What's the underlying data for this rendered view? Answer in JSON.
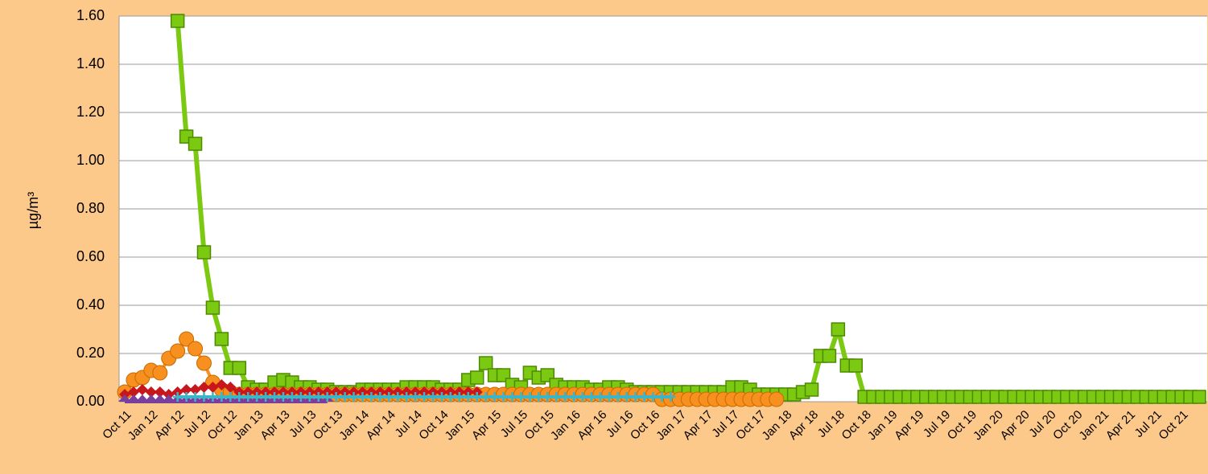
{
  "chart_data": {
    "type": "line",
    "y_label": "µg/m³",
    "categories": [
      "Oct 11",
      null,
      null,
      "Jan 12",
      null,
      null,
      "Apr 12",
      null,
      null,
      "Jul 12",
      null,
      null,
      "Oct 12",
      null,
      null,
      "Jan 13",
      null,
      null,
      "Apr 13",
      null,
      null,
      "Jul 13",
      null,
      null,
      "Oct 13",
      null,
      null,
      "Jan 14",
      null,
      null,
      "Apr 14",
      null,
      null,
      "Jul 14",
      null,
      null,
      "Oct 14",
      null,
      null,
      "Jan 15",
      null,
      null,
      "Apr 15",
      null,
      null,
      "Jul 15",
      null,
      null,
      "Oct 15",
      null,
      null,
      "Jan 16",
      null,
      null,
      "Apr 16",
      null,
      null,
      "Jul 16",
      null,
      null,
      "Oct 16",
      null,
      null,
      "Jan 17",
      null,
      null,
      "Apr 17",
      null,
      null,
      "Jul 17",
      null,
      null,
      "Oct 17",
      null,
      null,
      "Jan 18",
      null,
      null,
      "Apr 18",
      null,
      null,
      "Jul 18",
      null,
      null,
      "Oct 18",
      null,
      null,
      "Jan 19",
      null,
      null,
      "Apr 19",
      null,
      null,
      "Jul 19",
      null,
      null,
      "Oct 19",
      null,
      null,
      "Jan 20",
      null,
      null,
      "Apr 20",
      null,
      null,
      "Jul 20",
      null,
      null,
      "Oct 20",
      null,
      null,
      "Jan 21",
      null,
      null,
      "Apr 21",
      null,
      null,
      "Jul 21",
      null,
      null,
      "Oct 21",
      null,
      null
    ],
    "ylim": [
      0,
      1.6
    ],
    "yticks": [
      {
        "value": 0,
        "label": "0.00"
      },
      {
        "value": 0.2,
        "label": "0.20"
      },
      {
        "value": 0.4,
        "label": "0.40"
      },
      {
        "value": 0.6,
        "label": "0.60"
      },
      {
        "value": 0.8,
        "label": "0.80"
      },
      {
        "value": 1.0,
        "label": "1.00"
      },
      {
        "value": 1.2,
        "label": "1.20"
      },
      {
        "value": 1.4,
        "label": "1.40"
      },
      {
        "value": 1.6,
        "label": "1.60"
      }
    ],
    "grid": true,
    "series": [
      {
        "color": "#7cc912",
        "marker": "square",
        "values": [
          null,
          null,
          null,
          null,
          null,
          null,
          1.58,
          1.1,
          1.07,
          0.62,
          0.39,
          0.26,
          0.14,
          0.14,
          0.06,
          0.05,
          0.05,
          0.08,
          0.09,
          0.08,
          0.06,
          0.06,
          0.05,
          0.05,
          0.04,
          0.04,
          0.04,
          0.05,
          0.05,
          0.05,
          0.05,
          0.05,
          0.06,
          0.06,
          0.06,
          0.06,
          0.05,
          0.05,
          0.05,
          0.09,
          0.1,
          0.16,
          0.11,
          0.11,
          0.07,
          0.06,
          0.12,
          0.1,
          0.11,
          0.07,
          0.06,
          0.06,
          0.06,
          0.05,
          0.05,
          0.06,
          0.06,
          0.05,
          0.04,
          0.04,
          0.04,
          0.04,
          0.04,
          0.04,
          0.04,
          0.04,
          0.04,
          0.04,
          0.04,
          0.06,
          0.06,
          0.05,
          0.03,
          0.03,
          0.03,
          0.03,
          0.03,
          0.04,
          0.05,
          0.19,
          0.19,
          0.3,
          0.15,
          0.15,
          0.02,
          0.02,
          0.02,
          0.02,
          0.02,
          0.02,
          0.02,
          0.02,
          0.02,
          0.02,
          0.02,
          0.02,
          0.02,
          0.02,
          0.02,
          0.02,
          0.02,
          0.02,
          0.02,
          0.02,
          0.02,
          0.02,
          0.02,
          0.02,
          0.02,
          0.02,
          0.02,
          0.02,
          0.02,
          0.02,
          0.02,
          0.02,
          0.02,
          0.02,
          0.02,
          0.02,
          0.02,
          0.02,
          0.02
        ]
      },
      {
        "color": "#f7901e",
        "marker": "circle",
        "values": [
          0.04,
          0.09,
          0.1,
          0.13,
          0.12,
          0.18,
          0.21,
          0.26,
          0.22,
          0.16,
          0.08,
          0.05,
          0.04,
          0.03,
          0.03,
          0.03,
          0.03,
          0.03,
          0.03,
          0.03,
          0.03,
          0.03,
          0.03,
          0.03,
          0.03,
          0.03,
          0.03,
          0.03,
          0.03,
          0.03,
          0.03,
          0.03,
          0.03,
          0.03,
          0.03,
          0.03,
          0.03,
          0.03,
          0.03,
          0.03,
          0.03,
          0.03,
          0.03,
          0.03,
          0.03,
          0.03,
          0.03,
          0.03,
          0.03,
          0.03,
          0.03,
          0.03,
          0.03,
          0.03,
          0.03,
          0.03,
          0.03,
          0.03,
          0.03,
          0.03,
          0.03,
          0.01,
          0.01,
          0.01,
          0.01,
          0.01,
          0.01,
          0.01,
          0.01,
          0.01,
          0.01,
          0.01,
          0.01,
          0.01,
          0.01,
          null,
          null,
          null,
          null,
          null,
          null,
          null,
          null,
          null,
          null,
          null,
          null,
          null,
          null,
          null,
          null,
          null,
          null,
          null,
          null,
          null,
          null,
          null,
          null,
          null,
          null,
          null,
          null,
          null,
          null,
          null,
          null,
          null,
          null,
          null,
          null,
          null,
          null,
          null,
          null,
          null,
          null,
          null,
          null,
          null,
          null,
          null,
          null
        ]
      },
      {
        "color": "#c8161d",
        "marker": "diamond",
        "values": [
          0.03,
          0.04,
          0.05,
          0.04,
          0.04,
          0.03,
          0.04,
          0.05,
          0.05,
          0.06,
          0.06,
          0.07,
          0.06,
          0.04,
          0.04,
          0.04,
          0.04,
          0.04,
          0.04,
          0.04,
          0.04,
          0.04,
          0.04,
          0.04,
          0.04,
          0.04,
          0.04,
          0.04,
          0.04,
          0.04,
          0.04,
          0.04,
          0.04,
          0.04,
          0.04,
          0.04,
          0.04,
          0.04,
          0.04,
          0.04,
          0.04,
          null,
          null,
          null,
          null,
          null,
          null,
          null,
          null,
          null,
          null,
          null,
          null,
          null,
          null,
          null,
          null,
          null,
          null,
          null,
          null,
          null,
          null,
          null,
          null,
          null,
          null,
          null,
          null,
          null,
          null,
          null,
          null,
          null,
          null,
          null,
          null,
          null,
          null,
          null,
          null,
          null,
          null,
          null,
          null,
          null,
          null,
          null,
          null,
          null,
          null,
          null,
          null,
          null,
          null,
          null,
          null,
          null,
          null,
          null,
          null,
          null,
          null,
          null,
          null,
          null,
          null,
          null,
          null,
          null,
          null,
          null,
          null,
          null,
          null,
          null,
          null,
          null,
          null,
          null,
          null,
          null,
          null
        ]
      },
      {
        "color": "#7a3e9d",
        "marker": "triangle",
        "values": [
          0,
          0,
          0,
          0,
          0,
          0,
          0,
          0,
          0,
          0,
          0,
          0,
          0,
          0,
          0,
          0,
          0,
          0,
          0,
          0,
          0,
          0,
          0,
          0,
          null,
          null,
          null,
          null,
          null,
          null,
          null,
          null,
          null,
          null,
          null,
          null,
          null,
          null,
          null,
          null,
          null,
          null,
          null,
          null,
          null,
          null,
          null,
          null,
          null,
          null,
          null,
          null,
          null,
          null,
          null,
          null,
          null,
          null,
          null,
          null,
          null,
          null,
          null,
          null,
          null,
          null,
          null,
          null,
          null,
          null,
          null,
          null,
          null,
          null,
          null,
          null,
          null,
          null,
          null,
          null,
          null,
          null,
          null,
          null,
          null,
          null,
          null,
          null,
          null,
          null,
          null,
          null,
          null,
          null,
          null,
          null,
          null,
          null,
          null,
          null,
          null,
          null,
          null,
          null,
          null,
          null,
          null,
          null,
          null,
          null,
          null,
          null,
          null,
          null,
          null,
          null,
          null,
          null,
          null,
          null,
          null,
          null,
          null
        ]
      },
      {
        "color": "#3cb6c6",
        "marker": "plus",
        "values": [
          null,
          null,
          null,
          null,
          null,
          null,
          0.02,
          0.02,
          0.02,
          0.02,
          0.02,
          0.02,
          0.02,
          0.02,
          0.02,
          0.02,
          0.02,
          0.02,
          0.02,
          0.02,
          0.02,
          0.02,
          0.02,
          0.02,
          0.02,
          0.02,
          0.02,
          0.02,
          0.02,
          0.02,
          0.02,
          0.02,
          0.02,
          0.02,
          0.02,
          0.02,
          0.02,
          0.02,
          0.02,
          0.02,
          0.02,
          0.02,
          0.02,
          0.02,
          0.02,
          0.02,
          0.02,
          0.02,
          0.02,
          0.02,
          0.02,
          0.02,
          0.02,
          0.02,
          0.02,
          0.02,
          0.02,
          0.02,
          0.02,
          0.02,
          0.02,
          0.02,
          0.02,
          null,
          null,
          null,
          null,
          null,
          null,
          null,
          null,
          null,
          null,
          null,
          null,
          null,
          null,
          null,
          null,
          null,
          null,
          null,
          null,
          null,
          null,
          null,
          null,
          null,
          null,
          null,
          null,
          null,
          null,
          null,
          null,
          null,
          null,
          null,
          null,
          null,
          null,
          null,
          null,
          null,
          null,
          null,
          null,
          null,
          null,
          null,
          null,
          null,
          null,
          null,
          null,
          null,
          null,
          null,
          null,
          null,
          null,
          null,
          null
        ]
      }
    ]
  }
}
